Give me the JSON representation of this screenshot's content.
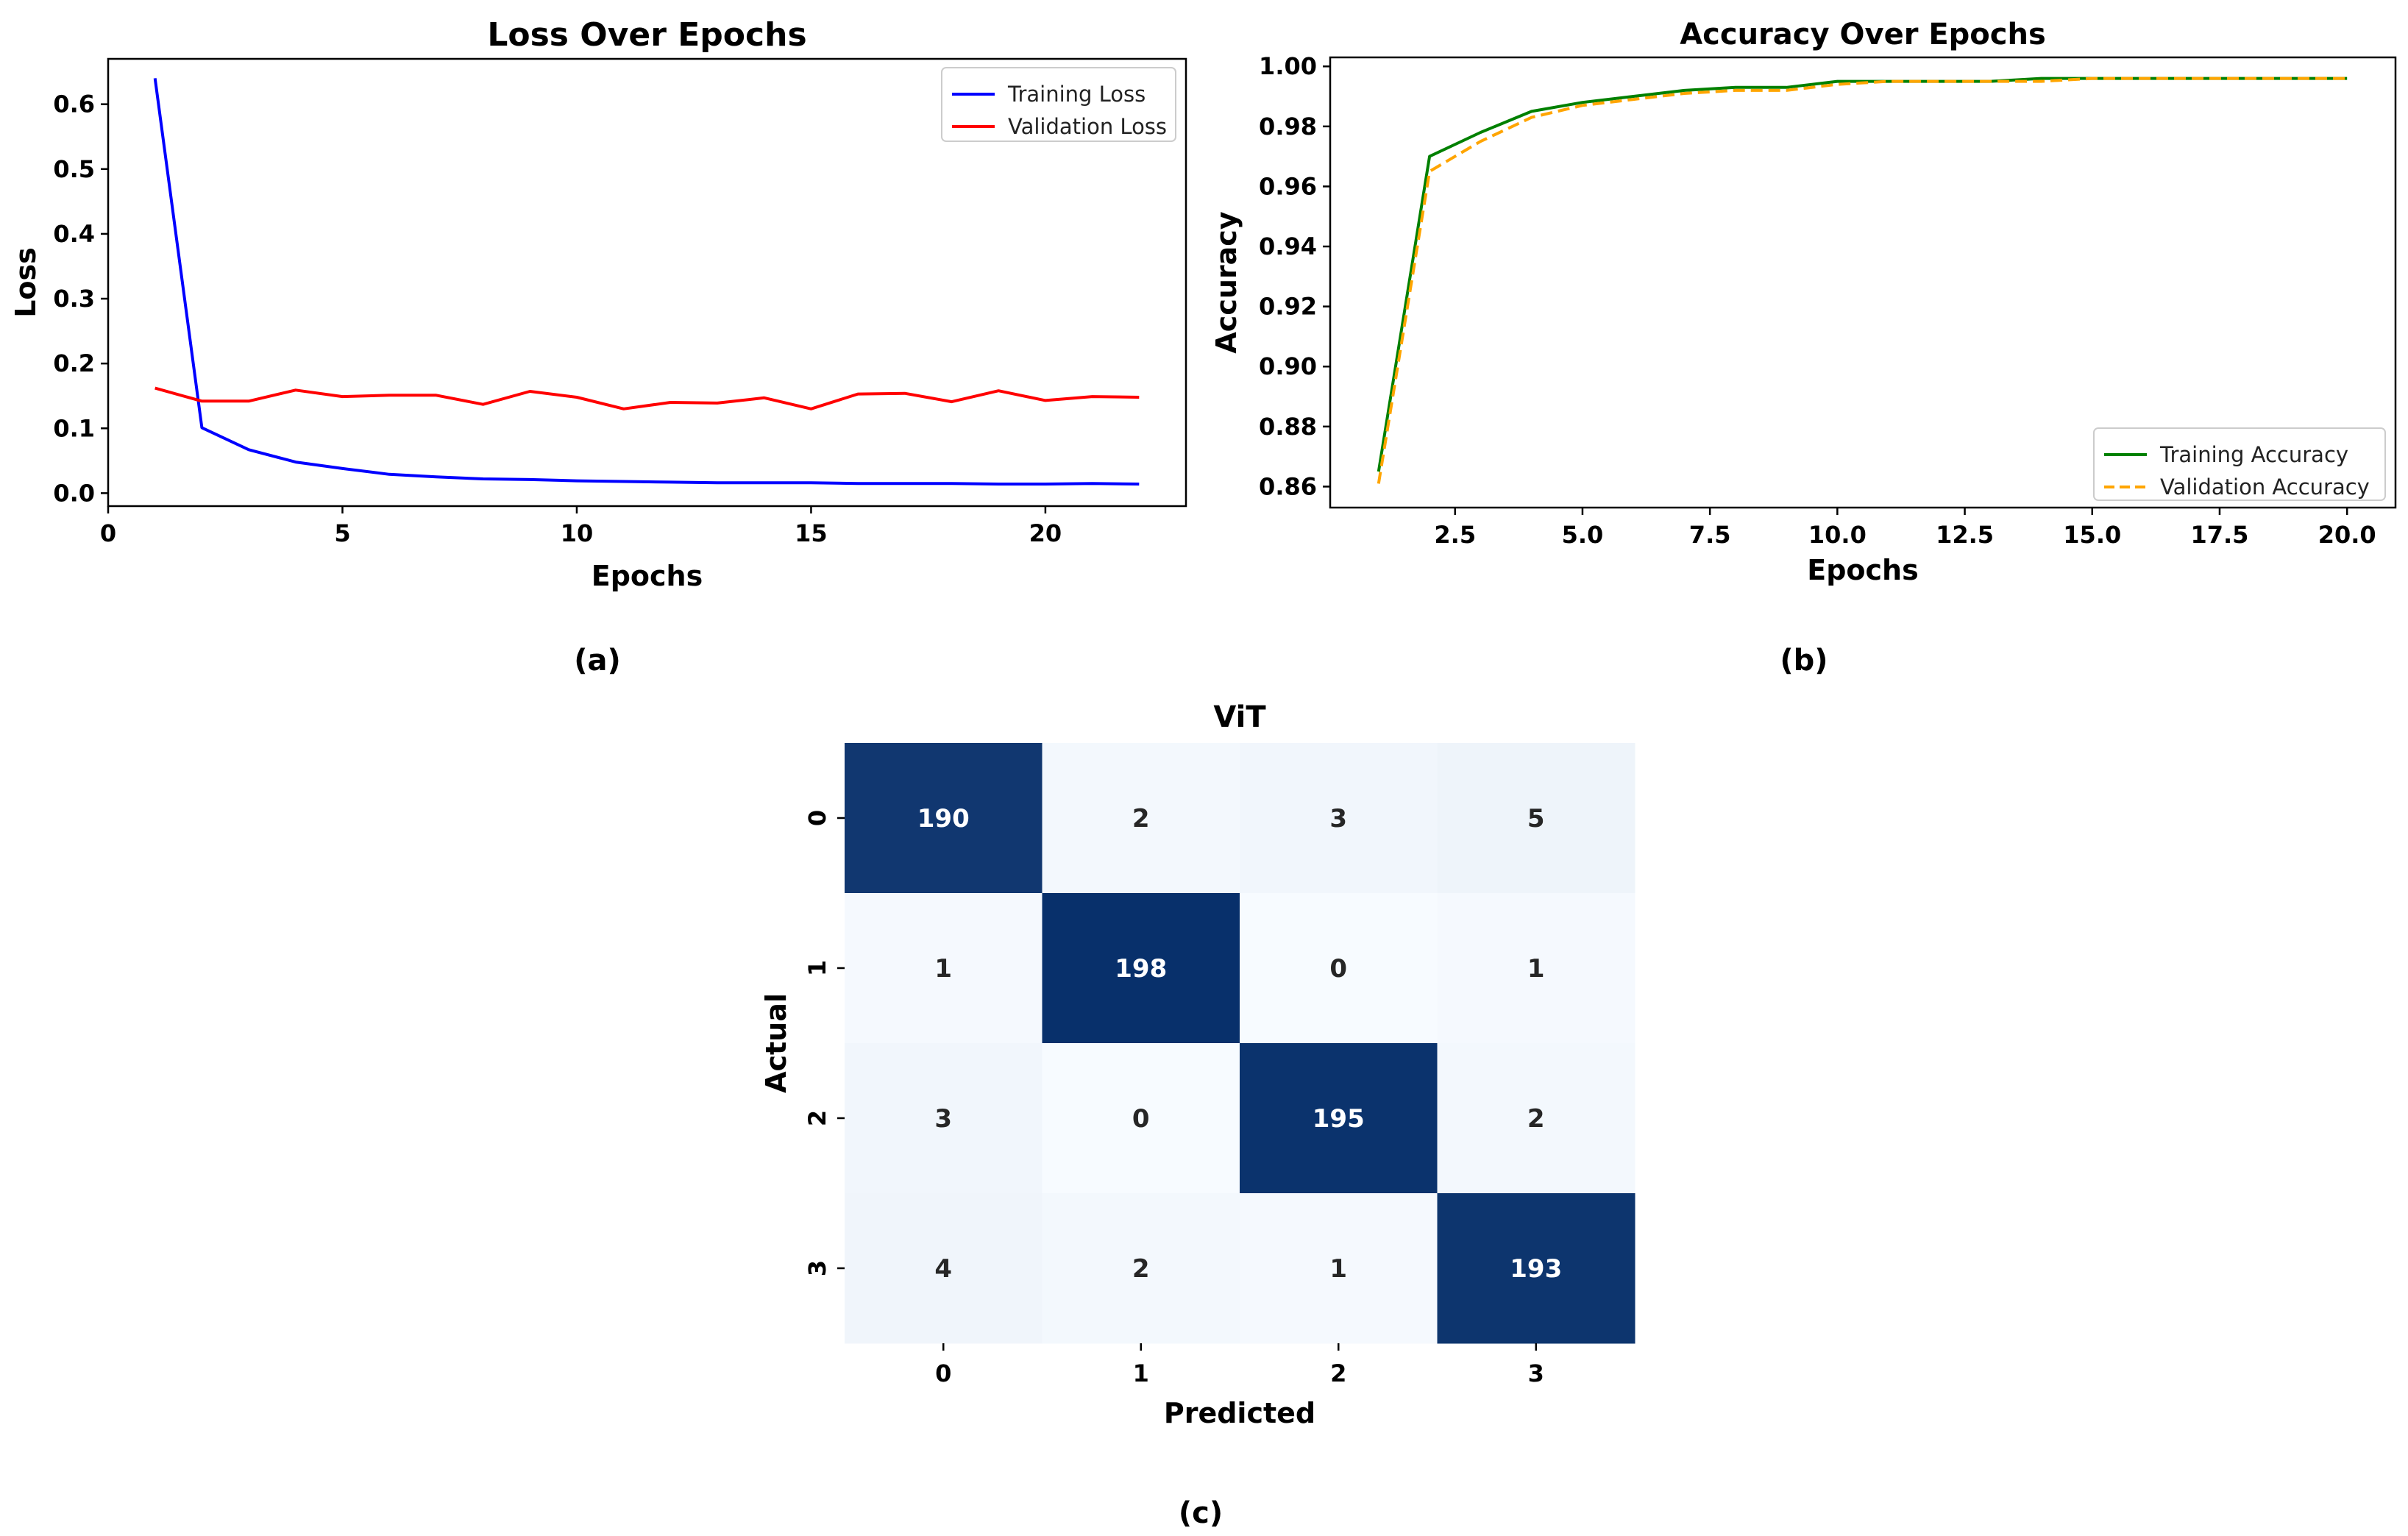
{
  "chart_data": [
    {
      "type": "line",
      "title": "Loss Over Epochs",
      "xlabel": "Epochs",
      "ylabel": "Loss",
      "xlim": [
        0,
        23
      ],
      "ylim": [
        -0.02,
        0.67
      ],
      "xticks": [
        0,
        5,
        10,
        15,
        20
      ],
      "yticks": [
        0.0,
        0.1,
        0.2,
        0.3,
        0.4,
        0.5,
        0.6
      ],
      "ytick_labels": [
        "0.0",
        "0.1",
        "0.2",
        "0.3",
        "0.4",
        "0.5",
        "0.6"
      ],
      "legend_position": "top-right",
      "grid": false,
      "x": [
        1,
        2,
        3,
        4,
        5,
        6,
        7,
        8,
        9,
        10,
        11,
        12,
        13,
        14,
        15,
        16,
        17,
        18,
        19,
        20,
        21,
        22
      ],
      "series": [
        {
          "name": "Training Loss",
          "color": "#0000ff",
          "style": "solid",
          "values": [
            0.64,
            0.101,
            0.067,
            0.048,
            0.038,
            0.029,
            0.025,
            0.022,
            0.021,
            0.019,
            0.018,
            0.017,
            0.016,
            0.016,
            0.016,
            0.015,
            0.015,
            0.015,
            0.014,
            0.014,
            0.015,
            0.014
          ]
        },
        {
          "name": "Validation Loss",
          "color": "#ff0000",
          "style": "solid",
          "values": [
            0.162,
            0.142,
            0.142,
            0.159,
            0.149,
            0.151,
            0.151,
            0.137,
            0.157,
            0.148,
            0.13,
            0.14,
            0.139,
            0.147,
            0.13,
            0.153,
            0.154,
            0.141,
            0.158,
            0.143,
            0.149,
            0.148
          ]
        }
      ],
      "caption": "(a)"
    },
    {
      "type": "line",
      "title": "Accuracy Over Epochs",
      "xlabel": "Epochs",
      "ylabel": "Accuracy",
      "xlim": [
        0.05,
        20.95
      ],
      "ylim": [
        0.853,
        1.003
      ],
      "xticks": [
        2.5,
        5.0,
        7.5,
        10.0,
        12.5,
        15.0,
        17.5,
        20.0
      ],
      "xtick_labels": [
        "2.5",
        "5.0",
        "7.5",
        "10.0",
        "12.5",
        "15.0",
        "17.5",
        "20.0"
      ],
      "yticks": [
        0.86,
        0.88,
        0.9,
        0.92,
        0.94,
        0.96,
        0.98,
        1.0
      ],
      "ytick_labels": [
        "0.86",
        "0.88",
        "0.90",
        "0.92",
        "0.94",
        "0.96",
        "0.98",
        "1.00"
      ],
      "legend_position": "bottom-right",
      "grid": false,
      "x": [
        1,
        2,
        3,
        4,
        5,
        6,
        7,
        8,
        9,
        10,
        11,
        12,
        13,
        14,
        15,
        16,
        17,
        18,
        19,
        20
      ],
      "series": [
        {
          "name": "Training Accuracy",
          "color": "#008000",
          "style": "solid",
          "values": [
            0.865,
            0.97,
            0.978,
            0.985,
            0.988,
            0.99,
            0.992,
            0.993,
            0.993,
            0.995,
            0.995,
            0.995,
            0.995,
            0.996,
            0.996,
            0.996,
            0.996,
            0.996,
            0.996,
            0.996
          ]
        },
        {
          "name": "Validation Accuracy",
          "color": "#ffa500",
          "style": "dashed",
          "values": [
            0.861,
            0.965,
            0.975,
            0.983,
            0.987,
            0.989,
            0.991,
            0.992,
            0.992,
            0.994,
            0.995,
            0.995,
            0.995,
            0.995,
            0.996,
            0.996,
            0.996,
            0.996,
            0.996,
            0.996
          ]
        }
      ],
      "caption": "(b)"
    },
    {
      "type": "heatmap",
      "title": "ViT",
      "xlabel": "Predicted",
      "ylabel": "Actual",
      "x_labels": [
        "0",
        "1",
        "2",
        "3"
      ],
      "y_labels": [
        "0",
        "1",
        "2",
        "3"
      ],
      "colormap": "Blues",
      "values": [
        [
          190,
          2,
          3,
          5
        ],
        [
          1,
          198,
          0,
          1
        ],
        [
          3,
          0,
          195,
          2
        ],
        [
          4,
          2,
          1,
          193
        ]
      ],
      "caption": "(c)"
    }
  ]
}
